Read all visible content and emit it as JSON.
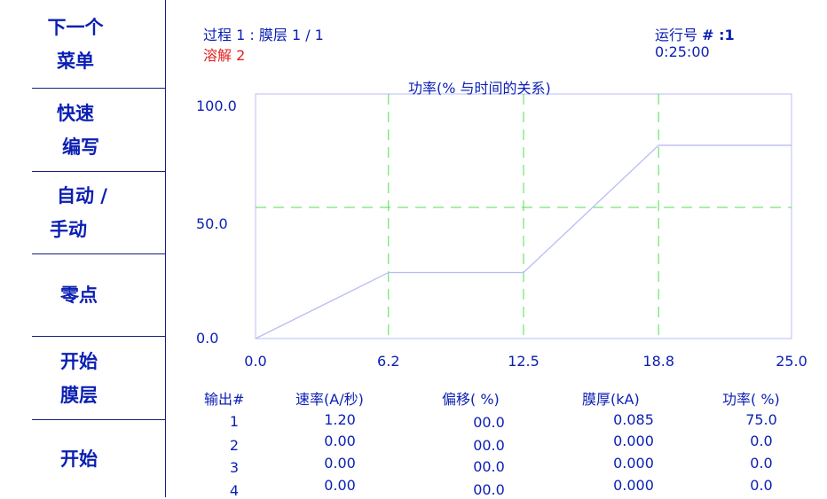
{
  "menu": [
    {
      "lines": [
        "下一个",
        "菜单"
      ]
    },
    {
      "lines": [
        "快速",
        "编写"
      ]
    },
    {
      "lines": [
        "自动 /",
        "手动"
      ]
    },
    {
      "lines": [
        "零点"
      ]
    },
    {
      "lines": [
        "开始",
        "膜层"
      ]
    },
    {
      "lines": [
        "开始"
      ]
    }
  ],
  "status": {
    "process_label": "过程",
    "process_value": "1 : 膜层 1 / 1",
    "dissolve_label": "溶解",
    "dissolve_value": "2",
    "run_label": "运行号",
    "run_value": "# :1",
    "time": "0:25:00"
  },
  "chart_data": {
    "type": "line",
    "title": "功率(% 与时间的关系)",
    "x_ticks": [
      "0.0",
      "6.2",
      "12.5",
      "18.8",
      "25.0"
    ],
    "y_ticks": [
      "100.0",
      "50.0",
      "0.0"
    ],
    "xlim": [
      0,
      25
    ],
    "ylim": [
      0,
      100
    ],
    "series": [
      {
        "x": [
          0,
          6.2,
          12.5,
          18.8,
          25.0
        ],
        "y": [
          0,
          27,
          27,
          79,
          79
        ]
      }
    ],
    "grid": true,
    "line_color": "#b8bcf5",
    "grid_color": "#4ee04e"
  },
  "table": {
    "headers": [
      "输出#",
      "速率(A/秒)",
      "偏移(   %)",
      "膜厚(kA)",
      "功率(   %)"
    ],
    "rows": [
      [
        "1",
        "1.20",
        "00.0",
        "0.085",
        "75.0"
      ],
      [
        "2",
        "0.00",
        "00.0",
        "0.000",
        "0.0"
      ],
      [
        "3",
        "0.00",
        "00.0",
        "0.000",
        "0.0"
      ],
      [
        "4",
        "0.00",
        "00.0",
        "0.000",
        "0.0"
      ]
    ]
  }
}
